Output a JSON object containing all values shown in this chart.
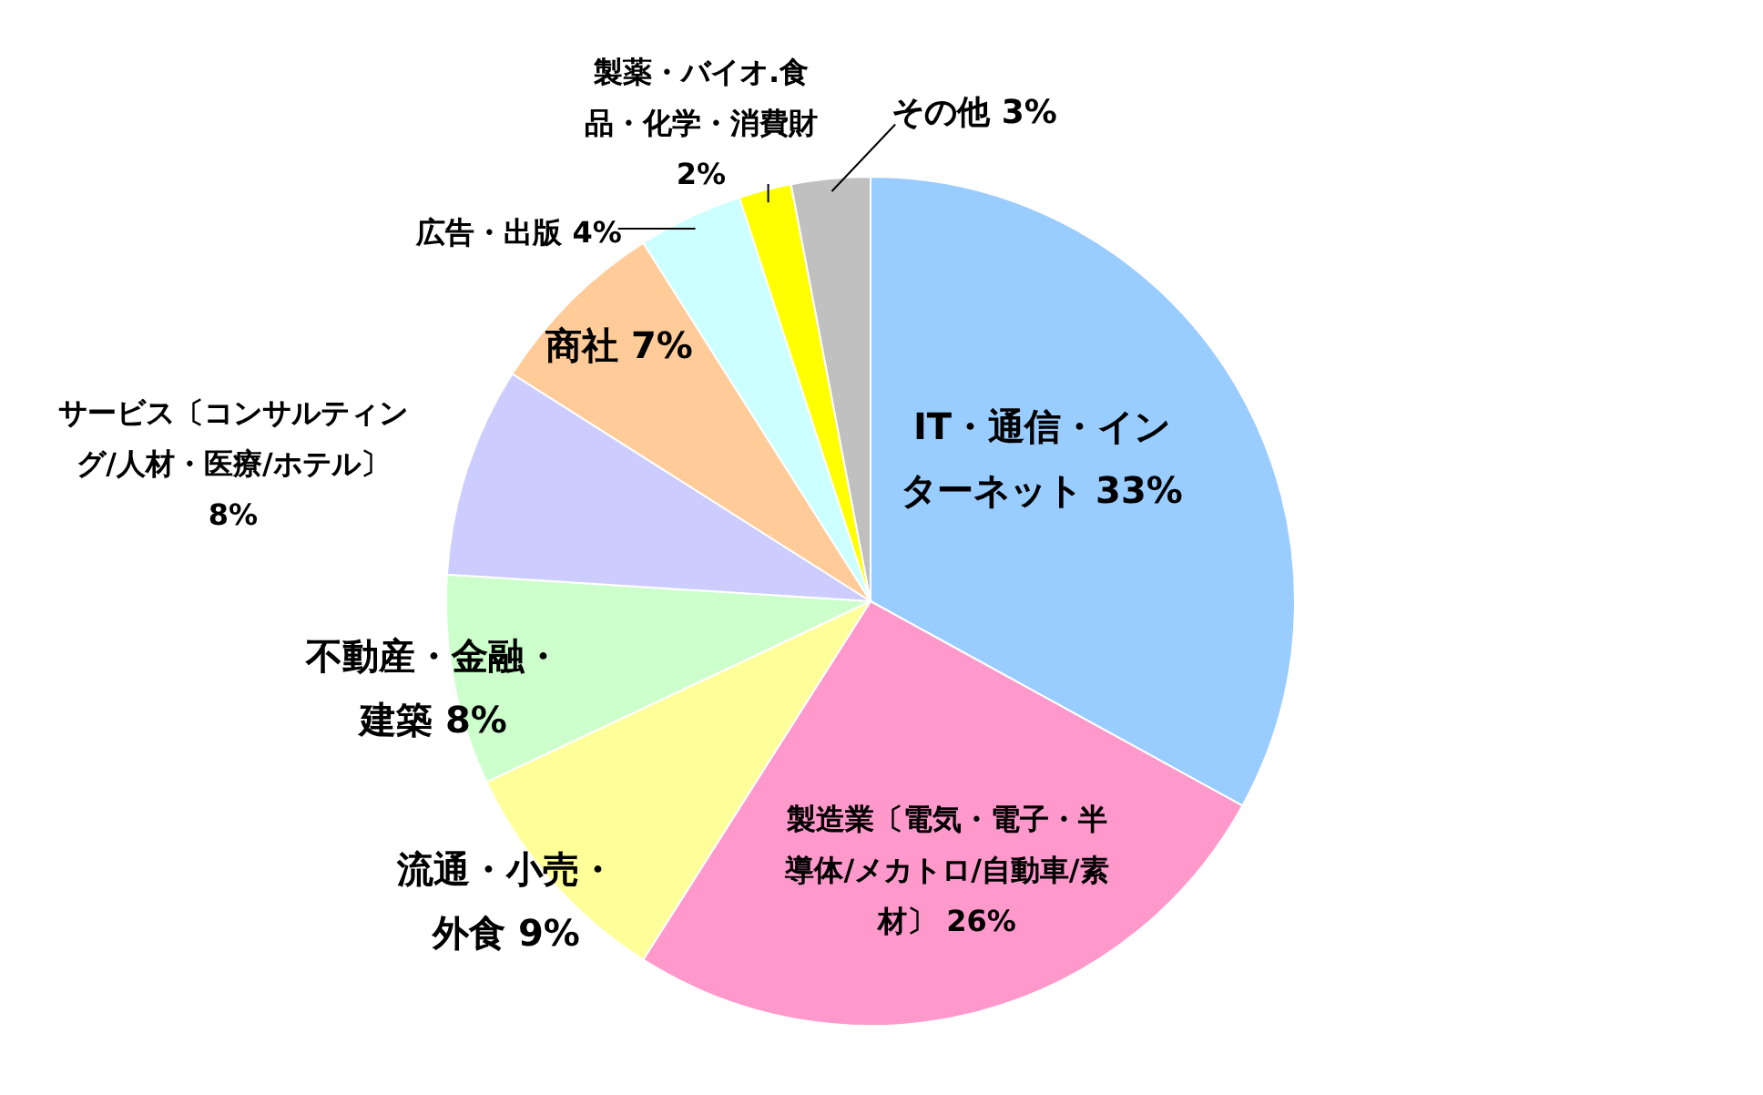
{
  "chart_data": {
    "type": "pie",
    "categories": [
      "IT・通信・インターネット",
      "製造業〔電気・電子・半導体/メカトロ/自動車/素材〕",
      "流通・小売・外食",
      "不動産・金融・建築",
      "サービス〔コンサルティング/人材・医療/ホテル〕",
      "商社",
      "広告・出版",
      "製薬・バイオ.食品・化学・消費財",
      "その他"
    ],
    "values": [
      33,
      26,
      9,
      8,
      8,
      7,
      4,
      2,
      3
    ],
    "value_labels": [
      "33%",
      "26%",
      "9%",
      "8%",
      "8%",
      "7%",
      "4%",
      "2%",
      "3%"
    ],
    "colors": [
      "#99ccff",
      "#ff99cc",
      "#ffff99",
      "#ccffcc",
      "#ccccff",
      "#ffcc99",
      "#ccffff",
      "#ffff00",
      "#c0c0c0"
    ]
  }
}
